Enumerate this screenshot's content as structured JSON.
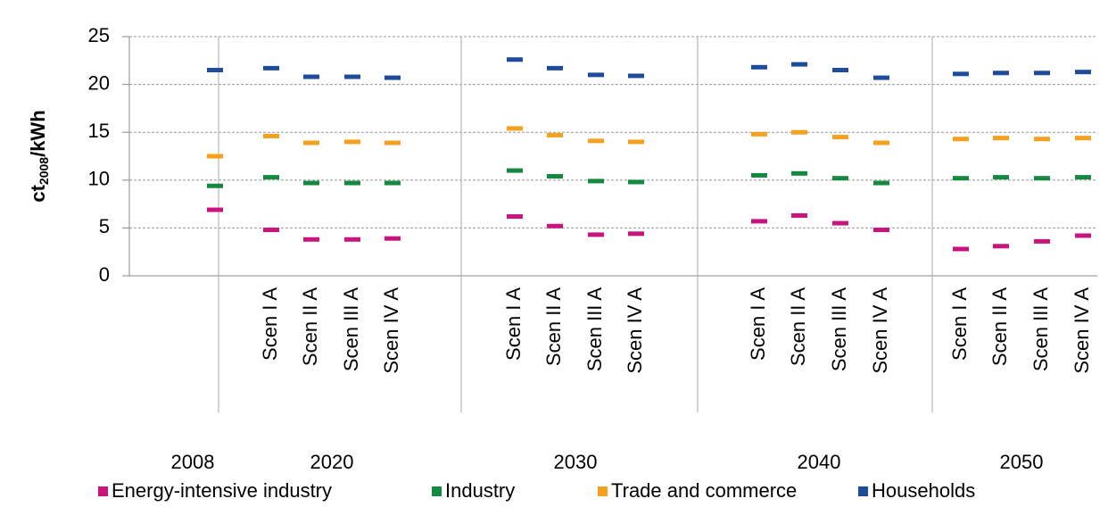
{
  "chart_data": {
    "type": "dash",
    "y_label": {
      "main": "ct",
      "sub": "2008",
      "unit": "/kWh"
    },
    "groups": [
      {
        "label": "2008",
        "categories": [
          null
        ]
      },
      {
        "label": "2020",
        "categories": [
          "Scen I A",
          "Scen II A",
          "Scen III A",
          "Scen IV A"
        ]
      },
      {
        "label": "2030",
        "categories": [
          "Scen I A",
          "Scen II A",
          "Scen III A",
          "Scen IV A"
        ]
      },
      {
        "label": "2040",
        "categories": [
          "Scen I A",
          "Scen II A",
          "Scen III A",
          "Scen IV A"
        ]
      },
      {
        "label": "2050",
        "categories": [
          "Scen I A",
          "Scen II A",
          "Scen III A",
          "Scen IV A"
        ]
      }
    ],
    "series": [
      {
        "name": "Energy-intensive industry",
        "color": "#c8157d",
        "values": [
          6.9,
          4.8,
          3.8,
          3.8,
          3.9,
          6.2,
          5.2,
          4.3,
          4.4,
          5.7,
          6.3,
          5.5,
          4.8,
          2.8,
          3.1,
          3.6,
          4.2
        ]
      },
      {
        "name": "Industry",
        "color": "#15893f",
        "values": [
          9.4,
          10.3,
          9.7,
          9.7,
          9.7,
          11.0,
          10.4,
          9.9,
          9.8,
          10.5,
          10.7,
          10.2,
          9.7,
          10.2,
          10.3,
          10.2,
          10.3
        ]
      },
      {
        "name": "Trade and commerce",
        "color": "#f5a01e",
        "values": [
          12.5,
          14.6,
          13.9,
          14.0,
          13.9,
          15.4,
          14.7,
          14.1,
          14.0,
          14.8,
          15.0,
          14.5,
          13.9,
          14.3,
          14.4,
          14.3,
          14.4
        ]
      },
      {
        "name": "Households",
        "color": "#1f4c9a",
        "values": [
          21.5,
          21.7,
          20.8,
          20.8,
          20.7,
          22.6,
          21.7,
          21.0,
          20.9,
          21.8,
          22.1,
          21.5,
          20.7,
          21.1,
          21.2,
          21.2,
          21.3
        ]
      }
    ],
    "ylim": [
      0,
      25
    ],
    "yticks": [
      0,
      5,
      10,
      15,
      20,
      25
    ],
    "grid": true
  }
}
